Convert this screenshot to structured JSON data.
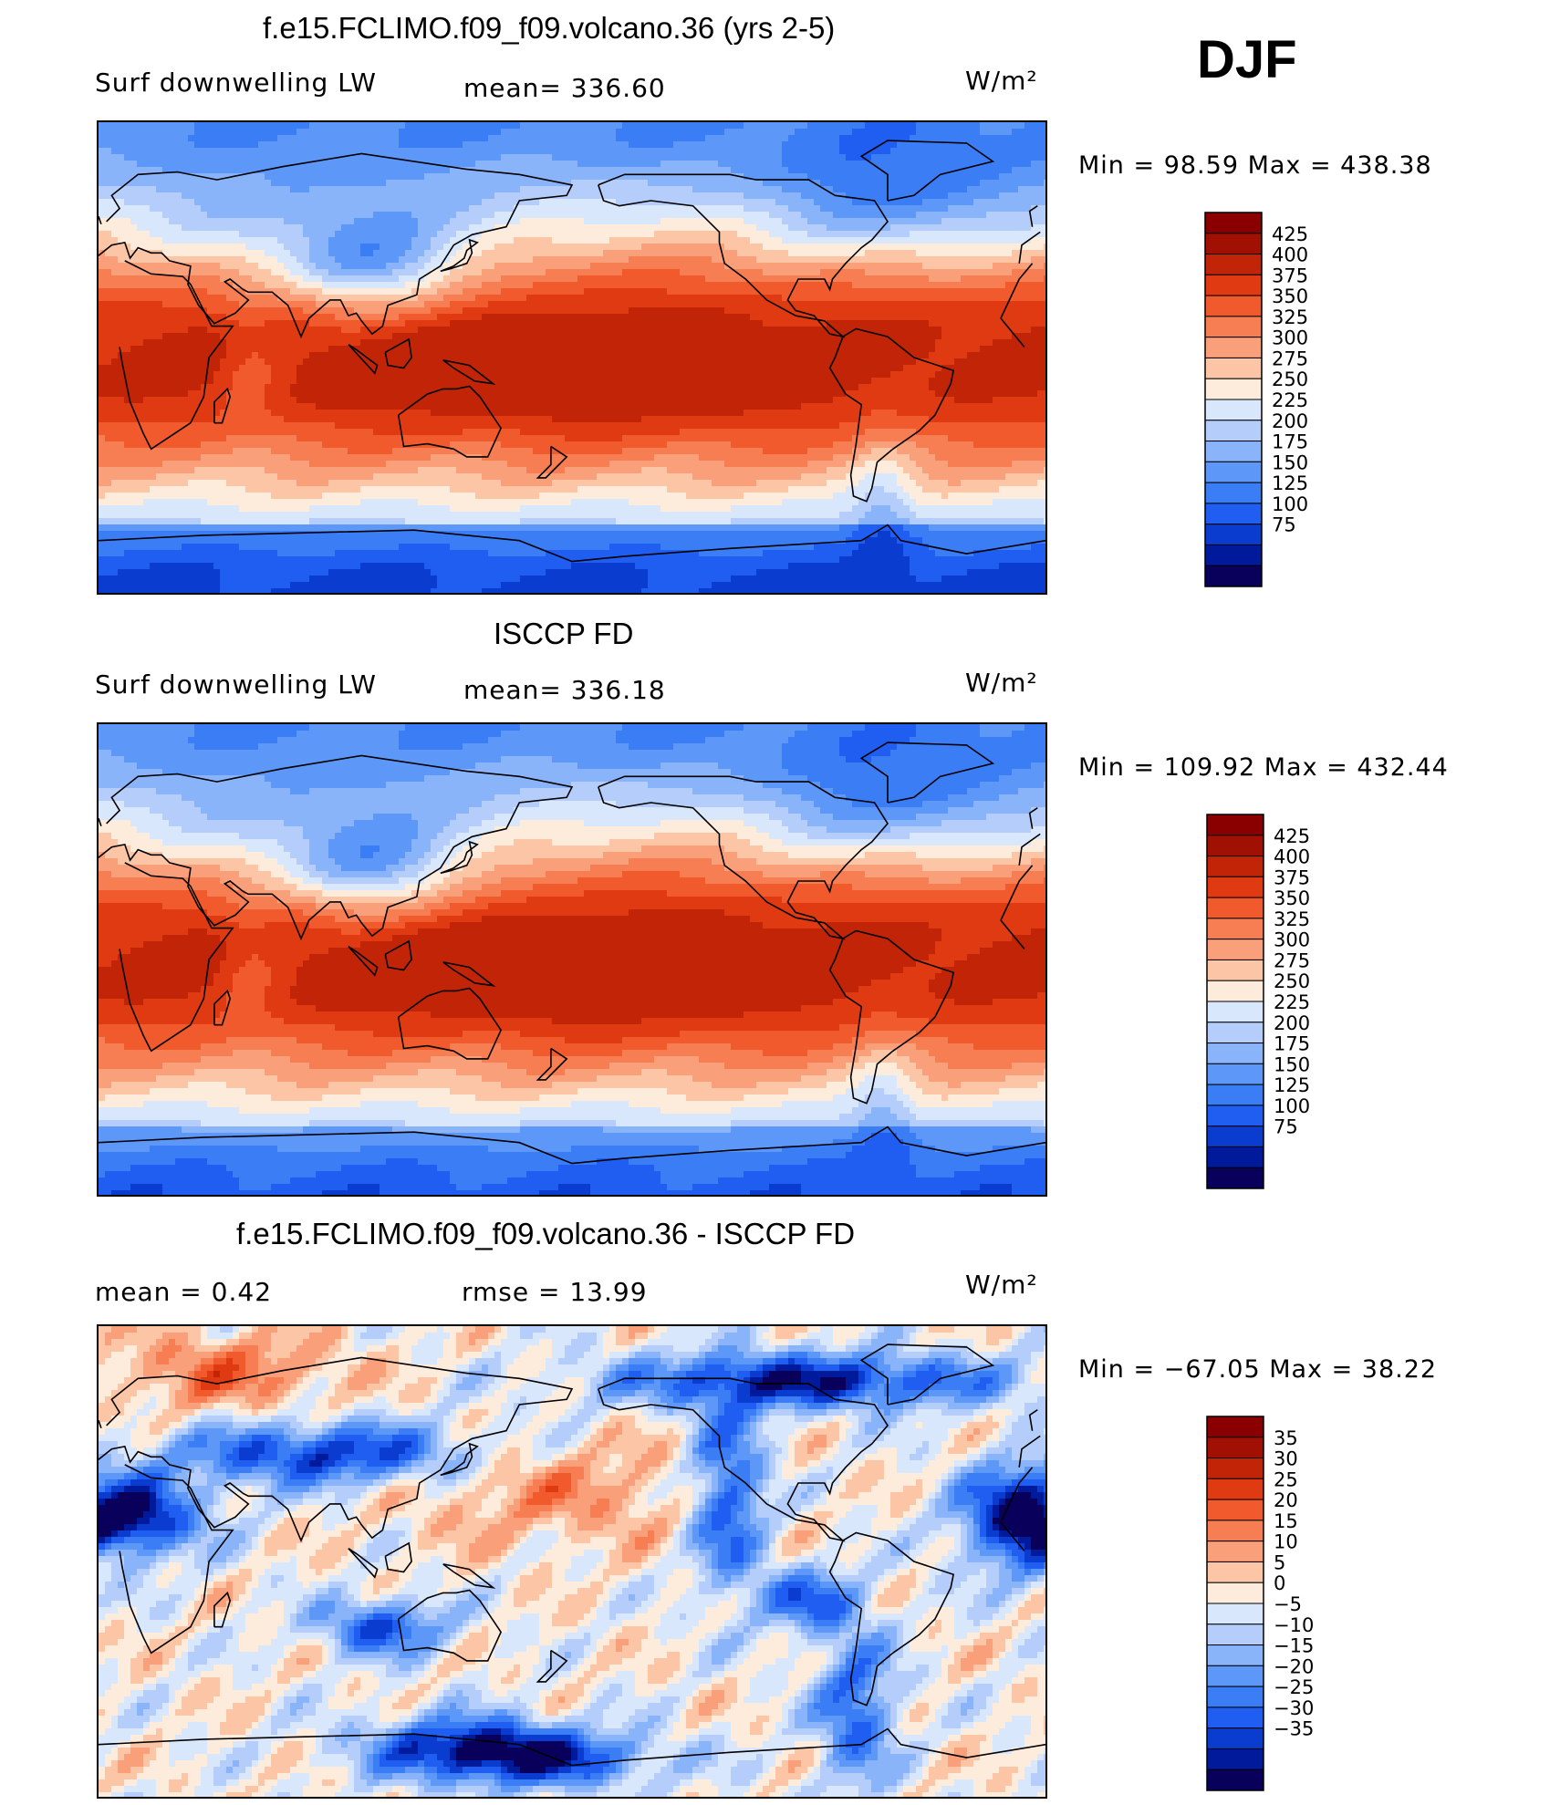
{
  "season": "DJF",
  "units_label": "W/m²",
  "colors": {
    "abs_scale": [
      "#08005a",
      "#001a9c",
      "#0a3ccf",
      "#1f5ef0",
      "#3a7df5",
      "#5d97f7",
      "#89b4f9",
      "#b4cdfa",
      "#d8e7fc",
      "#fdebdc",
      "#fcc6a6",
      "#f9a07a",
      "#f77e52",
      "#f05a2c",
      "#df3a12",
      "#c22408",
      "#a01104",
      "#8a0000"
    ],
    "diff_scale": [
      "#08005a",
      "#001a9c",
      "#0a3ccf",
      "#1f5ef0",
      "#3a7df5",
      "#5d97f7",
      "#89b4f9",
      "#b4cdfa",
      "#d8e7fc",
      "#fdebdc",
      "#fcc6a6",
      "#f9a07a",
      "#f77e52",
      "#f05a2c",
      "#df3a12",
      "#c22408",
      "#a01104",
      "#8a0000"
    ],
    "coast": "#000000"
  },
  "panels": [
    {
      "id": "model",
      "title": "f.e15.FCLIMO.f09_f09.volcano.36 (yrs 2-5)",
      "left_label": "Surf downwelling LW",
      "center_label": "mean= 336.60",
      "right_label": "W/m²",
      "minmax": "Min =   98.59  Max  =  438.38"
    },
    {
      "id": "obs",
      "title": "ISCCP FD",
      "left_label": "Surf downwelling LW",
      "center_label": "mean= 336.18",
      "right_label": "W/m²",
      "minmax": "Min  =  109.92  Max  =  432.44"
    },
    {
      "id": "diff",
      "title": "f.e15.FCLIMO.f09_f09.volcano.36 - ISCCP FD",
      "left_label": "mean  =      0.42",
      "center_label": "rmse  =     13.99",
      "right_label": "W/m²",
      "minmax": "Min  = −67.05  Max  =    38.22"
    }
  ],
  "chart_data": [
    {
      "type": "heatmap",
      "title": "f.e15.FCLIMO.f09_f09.volcano.36 (yrs 2-5)",
      "variable": "Surf downwelling LW",
      "units": "W/m²",
      "mean": 336.6,
      "min": 98.59,
      "max": 438.38,
      "levels": [
        75,
        100,
        125,
        150,
        175,
        200,
        225,
        250,
        275,
        300,
        325,
        350,
        375,
        400,
        425
      ],
      "colorbar_ticks": [
        "425",
        "400",
        "375",
        "350",
        "325",
        "300",
        "275",
        "250",
        "225",
        "200",
        "175",
        "150",
        "125",
        "100",
        "75"
      ]
    },
    {
      "type": "heatmap",
      "title": "ISCCP FD",
      "variable": "Surf downwelling LW",
      "units": "W/m²",
      "mean": 336.18,
      "min": 109.92,
      "max": 432.44,
      "levels": [
        75,
        100,
        125,
        150,
        175,
        200,
        225,
        250,
        275,
        300,
        325,
        350,
        375,
        400,
        425
      ],
      "colorbar_ticks": [
        "425",
        "400",
        "375",
        "350",
        "325",
        "300",
        "275",
        "250",
        "225",
        "200",
        "175",
        "150",
        "125",
        "100",
        "75"
      ]
    },
    {
      "type": "heatmap",
      "title": "f.e15.FCLIMO.f09_f09.volcano.36 - ISCCP FD",
      "units": "W/m²",
      "mean": 0.42,
      "rmse": 13.99,
      "min": -67.05,
      "max": 38.22,
      "levels": [
        -35,
        -30,
        -25,
        -20,
        -15,
        -10,
        -5,
        0,
        5,
        10,
        15,
        20,
        25,
        30,
        35
      ],
      "colorbar_ticks": [
        "35",
        "30",
        "25",
        "20",
        "15",
        "10",
        "5",
        "0",
        "−5",
        "−10",
        "−15",
        "−20",
        "−25",
        "−30",
        "−35"
      ]
    }
  ]
}
